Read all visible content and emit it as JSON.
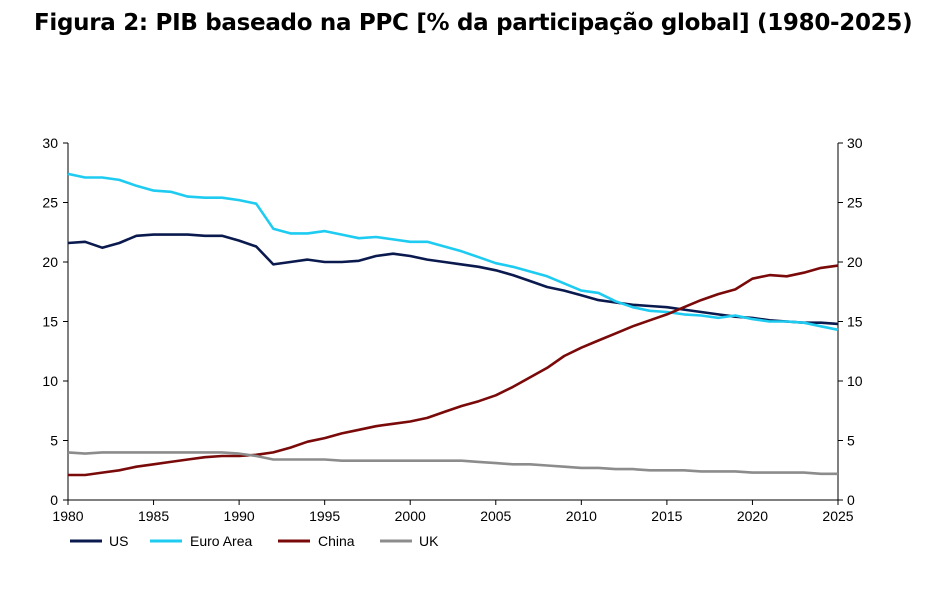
{
  "title": "Figura 2: PIB baseado na PPC [% da participação global] (1980-2025)",
  "chart_data": {
    "type": "line",
    "title": "Figura 2: PIB baseado na PPC [% da participação global] (1980-2025)",
    "xlim": [
      1980,
      2025
    ],
    "ylim": [
      0,
      30
    ],
    "y_right_axis": true,
    "x_ticks": [
      "1980",
      "1985",
      "1990",
      "1995",
      "2000",
      "2005",
      "2010",
      "2015",
      "2020",
      "2025"
    ],
    "y_ticks": [
      "0",
      "5",
      "10",
      "15",
      "20",
      "25",
      "30"
    ],
    "grid": false,
    "legend_position": "bottom-left",
    "x": [
      1980,
      1981,
      1982,
      1983,
      1984,
      1985,
      1986,
      1987,
      1988,
      1989,
      1990,
      1991,
      1992,
      1993,
      1994,
      1995,
      1996,
      1997,
      1998,
      1999,
      2000,
      2001,
      2002,
      2003,
      2004,
      2005,
      2006,
      2007,
      2008,
      2009,
      2010,
      2011,
      2012,
      2013,
      2014,
      2015,
      2016,
      2017,
      2018,
      2019,
      2020,
      2021,
      2022,
      2023,
      2024,
      2025
    ],
    "series": [
      {
        "name": "US",
        "color": "#0b1a4e",
        "values": [
          21.6,
          21.7,
          21.2,
          21.6,
          22.2,
          22.3,
          22.3,
          22.3,
          22.2,
          22.2,
          21.8,
          21.3,
          19.8,
          20.0,
          20.2,
          20.0,
          20.0,
          20.1,
          20.5,
          20.7,
          20.5,
          20.2,
          20.0,
          19.8,
          19.6,
          19.3,
          18.9,
          18.4,
          17.9,
          17.6,
          17.2,
          16.8,
          16.6,
          16.4,
          16.3,
          16.2,
          16.0,
          15.8,
          15.6,
          15.4,
          15.3,
          15.1,
          15.0,
          14.9,
          14.9,
          14.8
        ]
      },
      {
        "name": "Euro Area",
        "color": "#1ecbf1",
        "values": [
          27.4,
          27.1,
          27.1,
          26.9,
          26.4,
          26.0,
          25.9,
          25.5,
          25.4,
          25.4,
          25.2,
          24.9,
          22.8,
          22.4,
          22.4,
          22.6,
          22.3,
          22.0,
          22.1,
          21.9,
          21.7,
          21.7,
          21.3,
          20.9,
          20.4,
          19.9,
          19.6,
          19.2,
          18.8,
          18.2,
          17.6,
          17.4,
          16.7,
          16.2,
          15.9,
          15.8,
          15.6,
          15.5,
          15.3,
          15.5,
          15.2,
          15.0,
          15.0,
          14.9,
          14.6,
          14.3
        ]
      },
      {
        "name": "China",
        "color": "#7a0a0a",
        "values": [
          2.1,
          2.1,
          2.3,
          2.5,
          2.8,
          3.0,
          3.2,
          3.4,
          3.6,
          3.7,
          3.7,
          3.8,
          4.0,
          4.4,
          4.9,
          5.2,
          5.6,
          5.9,
          6.2,
          6.4,
          6.6,
          6.9,
          7.4,
          7.9,
          8.3,
          8.8,
          9.5,
          10.3,
          11.1,
          12.1,
          12.8,
          13.4,
          14.0,
          14.6,
          15.1,
          15.6,
          16.2,
          16.8,
          17.3,
          17.7,
          18.6,
          18.9,
          18.8,
          19.1,
          19.5,
          19.7
        ]
      },
      {
        "name": "UK",
        "color": "#8c8c8c",
        "values": [
          4.0,
          3.9,
          4.0,
          4.0,
          4.0,
          4.0,
          4.0,
          4.0,
          4.0,
          4.0,
          3.9,
          3.7,
          3.4,
          3.4,
          3.4,
          3.4,
          3.3,
          3.3,
          3.3,
          3.3,
          3.3,
          3.3,
          3.3,
          3.3,
          3.2,
          3.1,
          3.0,
          3.0,
          2.9,
          2.8,
          2.7,
          2.7,
          2.6,
          2.6,
          2.5,
          2.5,
          2.5,
          2.4,
          2.4,
          2.4,
          2.3,
          2.3,
          2.3,
          2.3,
          2.2,
          2.2
        ]
      }
    ]
  }
}
